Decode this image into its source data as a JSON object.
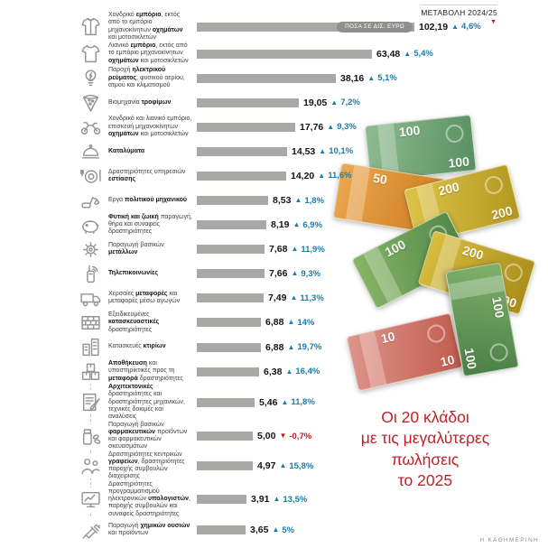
{
  "header": {
    "triangle_icon": "▼"
  },
  "chart_data": {
    "type": "bar",
    "orientation": "horizontal",
    "title": "Οι 20 κλάδοι\nμε τις μεγαλύτερες\nπωλήσεις\nτο 2025",
    "units_label": "ΠΟΣΑ ΣΕ ΔΙΣ. ΕΥΡΩ",
    "change_header": "ΜΕΤΑΒΟΛΗ 2024/25",
    "bar_color": "#a8a8a7",
    "up_color": "#1c7da7",
    "down_color": "#c8161d",
    "max_value": 102.19,
    "rows": [
      {
        "icon": "jacket-icon",
        "label": "Χονδρικό **εμπόριο**, εκτός από το εμπόριο μηχανοκίνητων **οχημάτων** και μοτοσικλετών",
        "value": "102,19",
        "value_num": 102.19,
        "change": "4,6%",
        "direction": "up"
      },
      {
        "icon": "apron-icon",
        "label": "Λιανικό **εμπόριο**, εκτός από το εμπόριο μηχανοκίνητων **οχημάτων** και μοτοσικλετών",
        "value": "63,48",
        "value_num": 63.48,
        "change": "5,4%",
        "direction": "up"
      },
      {
        "icon": "bulb-icon",
        "label": "Παροχή **ηλεκτρικού ρεύματος**, φυσικού αερίου, ατμού και κλιματισμού",
        "value": "38,16",
        "value_num": 38.16,
        "change": "5,1%",
        "direction": "up"
      },
      {
        "icon": "pizza-icon",
        "label": "Βιομηχανία **τροφίμων**",
        "value": "19,05",
        "value_num": 19.05,
        "change": "7,2%",
        "direction": "up"
      },
      {
        "icon": "motorcycle-icon",
        "label": "Χονδρικό και λιανικό εμπόριο, επισκευή μηχανοκίνητων **οχημάτων** και μοτοσικλετών",
        "value": "17,76",
        "value_num": 17.76,
        "change": "9,3%",
        "direction": "up"
      },
      {
        "icon": "bell-icon",
        "label": "**Καταλύματα**",
        "value": "14,53",
        "value_num": 14.53,
        "change": "10,1%",
        "direction": "up"
      },
      {
        "icon": "dining-icon",
        "label": "Δραστηριότητες υπηρεσιών **εστίασης**",
        "value": "14,20",
        "value_num": 14.2,
        "change": "11,6%",
        "direction": "up"
      },
      {
        "icon": "excavator-icon",
        "label": "Εργα **πολιτικού μηχανικού**",
        "value": "8,53",
        "value_num": 8.53,
        "change": "1,8%",
        "direction": "up"
      },
      {
        "icon": "piggy-bank-icon",
        "label": "**Φυτική και ζωική** παραγωγή, θήρα και συναφείς δραστηριότητες",
        "value": "8,19",
        "value_num": 8.19,
        "change": "6,9%",
        "direction": "up"
      },
      {
        "icon": "gear-icon",
        "label": "Παραγωγή βασικών **μετάλλων**",
        "value": "7,68",
        "value_num": 7.68,
        "change": "11,9%",
        "direction": "up"
      },
      {
        "icon": "radio-antenna-icon",
        "label": "**Τηλεπικοινωνίες**",
        "value": "7,66",
        "value_num": 7.66,
        "change": "9,3%",
        "direction": "up"
      },
      {
        "icon": "truck-icon",
        "label": "Χερσαίες **μεταφορές** και μεταφορές μέσω αγωγών",
        "value": "7,49",
        "value_num": 7.49,
        "change": "11,3%",
        "direction": "up"
      },
      {
        "icon": "brick-wall-icon",
        "label": "Εξειδικευμένες **κατασκευαστικές** δραστηριότητες",
        "value": "6,88",
        "value_num": 6.88,
        "change": "14%",
        "direction": "up"
      },
      {
        "icon": "buildings-icon",
        "label": "Κατασκευές **κτιρίων**",
        "value": "6,88",
        "value_num": 6.88,
        "change": "19,7%",
        "direction": "up"
      },
      {
        "icon": "boxes-icon",
        "label": "**Αποθήκευση** και υποστηρικτικές προς τη **μεταφορά** δραστηριότητες",
        "value": "6,38",
        "value_num": 6.38,
        "change": "16,4%",
        "direction": "up"
      },
      {
        "icon": "blueprint-icon",
        "label": "**Αρχιτεκτονικές** δραστηριότητες και δραστηριότητες μηχανικών, τεχνικές δοκιμές και αναλύσεις",
        "value": "5,46",
        "value_num": 5.46,
        "change": "11,8%",
        "direction": "up"
      },
      {
        "icon": "medicine-icon",
        "label": "Παραγωγή βασικών **φαρμακευτικών** προϊόντων και φαρμακευτικών σκευασμάτων",
        "value": "5,00",
        "value_num": 5.0,
        "change": "-0,7%",
        "direction": "down"
      },
      {
        "icon": "people-icon",
        "label": "Δραστηριότητες κεντρικών **γραφείων**, δραστηριότητες παροχής συμβουλών διαχείρισης",
        "value": "4,97",
        "value_num": 4.97,
        "change": "15,8%",
        "direction": "up"
      },
      {
        "icon": "monitor-chart-icon",
        "label": "Δραστηριότητες προγραμματισμού ηλεκτρονικών **υπολογιστών**, παροχής συμβουλών και συναφείς δραστηριότητες",
        "value": "3,91",
        "value_num": 3.91,
        "change": "13,5%",
        "direction": "up"
      },
      {
        "icon": "syringe-icon",
        "label": "Παραγωγή **χημικών ουσιών** και προϊόντων",
        "value": "3,65",
        "value_num": 3.65,
        "change": "5%",
        "direction": "up"
      }
    ]
  },
  "illustration": {
    "name": "scattered-euro-banknotes",
    "notes": [
      {
        "denomination": "100",
        "color_from": "#8fbb90",
        "color_to": "#579060"
      },
      {
        "denomination": "50",
        "color_from": "#eaa850",
        "color_to": "#cd7b1e"
      },
      {
        "denomination": "200",
        "color_from": "#ddc449",
        "color_to": "#b3981f"
      },
      {
        "denomination": "100",
        "color_from": "#88b565",
        "color_to": "#4f8548"
      },
      {
        "denomination": "200",
        "color_from": "#d9be40",
        "color_to": "#a88c1a"
      },
      {
        "denomination": "10",
        "color_from": "#de958a",
        "color_to": "#c05b4e"
      },
      {
        "denomination": "100",
        "color_from": "#80b16b",
        "color_to": "#497e47"
      }
    ]
  },
  "footer": {
    "credit": "Η ΚΑΘΗΜΕΡΙΝΗ"
  }
}
